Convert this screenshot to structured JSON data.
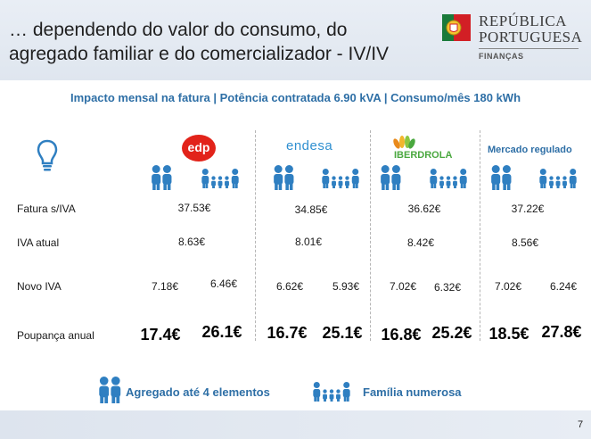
{
  "header": {
    "title_line1": "… dependendo do valor do consumo, do",
    "title_line2": "agregado familiar e do comercializador - IV/IV",
    "logo_line1": "REPÚBLICA",
    "logo_line2": "PORTUGUESA",
    "logo_line3": "FINANÇAS"
  },
  "subtitle": "Impacto mensal na fatura | Potência contratada 6.90 kVA | Consumo/mês 180 kWh",
  "rows": {
    "fatura": "Fatura s/IVA",
    "iva_atual": "IVA atual",
    "novo_iva": "Novo IVA",
    "poupanca": "Poupança anual"
  },
  "providers": [
    {
      "name": "edp",
      "fatura": "37.53€",
      "iva_atual": "8.63€",
      "novo_iva_small": "7.18€",
      "novo_iva_large": "6.46€",
      "poupanca_small": "17.4€",
      "poupanca_large": "26.1€"
    },
    {
      "name": "endesa",
      "fatura": "34.85€",
      "iva_atual": "8.01€",
      "novo_iva_small": "6.62€",
      "novo_iva_large": "5.93€",
      "poupanca_small": "16.7€",
      "poupanca_large": "25.1€"
    },
    {
      "name": "IBERDROLA",
      "fatura": "36.62€",
      "iva_atual": "8.42€",
      "novo_iva_small": "7.02€",
      "novo_iva_large": "6.32€",
      "poupanca_small": "16.8€",
      "poupanca_large": "25.2€"
    },
    {
      "name": "Mercado regulado",
      "fatura": "37.22€",
      "iva_atual": "8.56€",
      "novo_iva_small": "7.02€",
      "novo_iva_large": "6.24€",
      "poupanca_small": "18.5€",
      "poupanca_large": "27.8€"
    }
  ],
  "legend": {
    "small_family": "Agregado até 4 elementos",
    "large_family": "Família numerosa"
  },
  "page_number": "7",
  "colors": {
    "accent_blue": "#2e6fa6",
    "icon_blue": "#2f7fc1",
    "edp_red": "#e2231a",
    "iberdrola_green": "#4aa83f"
  },
  "icons": [
    "lightbulb-icon",
    "small-family-icon",
    "large-family-icon"
  ]
}
